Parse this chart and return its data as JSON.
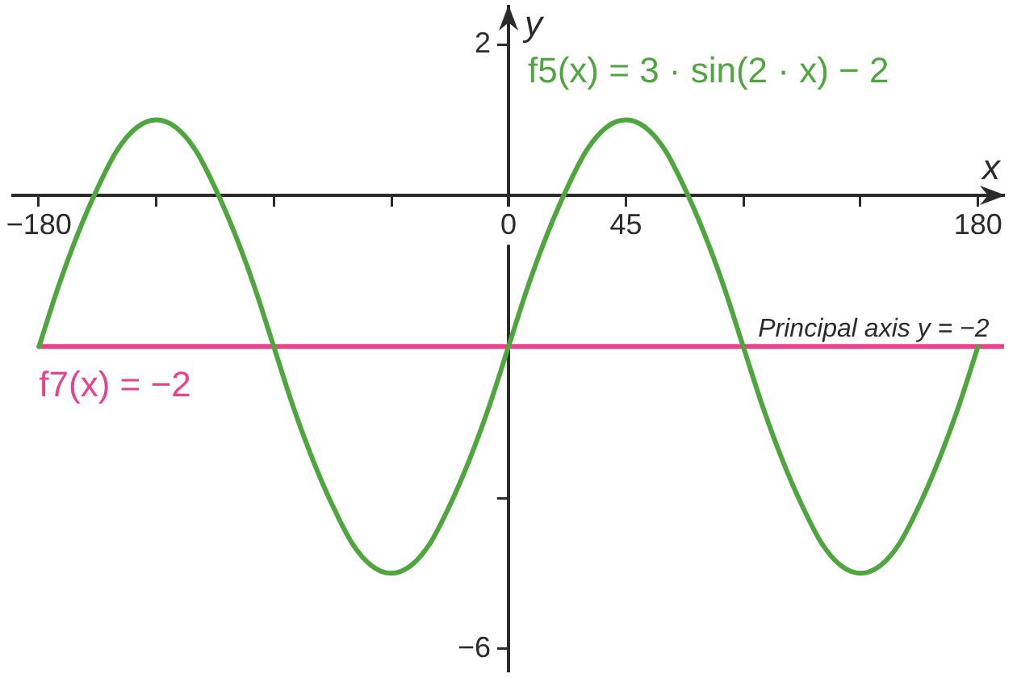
{
  "chart_data": {
    "type": "line",
    "xlabel": "x",
    "ylabel": "y",
    "xlim": [
      -190,
      190
    ],
    "ylim": [
      -6.3,
      2.5
    ],
    "xticks": [
      {
        "value": -180,
        "label": "−180"
      },
      {
        "value": -135,
        "label": null
      },
      {
        "value": -90,
        "label": null
      },
      {
        "value": -45,
        "label": null
      },
      0,
      45,
      {
        "value": 90,
        "label": null
      },
      {
        "value": 135,
        "label": null
      },
      180
    ],
    "yticks": [
      2,
      {
        "value": -2,
        "label": null
      },
      {
        "value": -4,
        "label": null
      },
      {
        "value": -6,
        "label": "−6"
      }
    ],
    "series": [
      {
        "name": "f5(x) = 3 · sin(2 · x) − 2",
        "color": "#4fa63f",
        "x": [
          -180,
          -172.5,
          -165,
          -157.5,
          -150,
          -142.5,
          -135,
          -127.5,
          -120,
          -112.5,
          -105,
          -97.5,
          -90,
          -82.5,
          -75,
          -67.5,
          -60,
          -52.5,
          -45,
          -37.5,
          -30,
          -22.5,
          -15,
          -7.5,
          0,
          7.5,
          15,
          22.5,
          30,
          37.5,
          45,
          52.5,
          60,
          67.5,
          75,
          82.5,
          90,
          97.5,
          105,
          112.5,
          120,
          127.5,
          135,
          142.5,
          150,
          157.5,
          165,
          172.5,
          180
        ],
        "values": [
          -2,
          -1.2,
          -0.5,
          0.1,
          0.6,
          0.9,
          1,
          0.9,
          0.6,
          0.1,
          -0.5,
          -1.2,
          -2,
          -2.8,
          -3.5,
          -4.1,
          -4.6,
          -4.9,
          -5,
          -4.9,
          -4.6,
          -4.1,
          -3.5,
          -2.8,
          -2,
          -1.2,
          -0.5,
          0.1,
          0.6,
          0.9,
          1,
          0.9,
          0.6,
          0.1,
          -0.5,
          -1.2,
          -2,
          -2.8,
          -3.5,
          -4.1,
          -4.6,
          -4.9,
          -5,
          -4.9,
          -4.6,
          -4.1,
          -3.5,
          -2.8,
          -2
        ]
      },
      {
        "name": "f7(x) = −2",
        "color": "#e8428c",
        "x": [
          -180,
          190
        ],
        "values": [
          -2,
          -2
        ]
      }
    ],
    "annotations": [
      {
        "text": "Principal axis y = −2",
        "x": 140,
        "y": -2
      }
    ]
  }
}
